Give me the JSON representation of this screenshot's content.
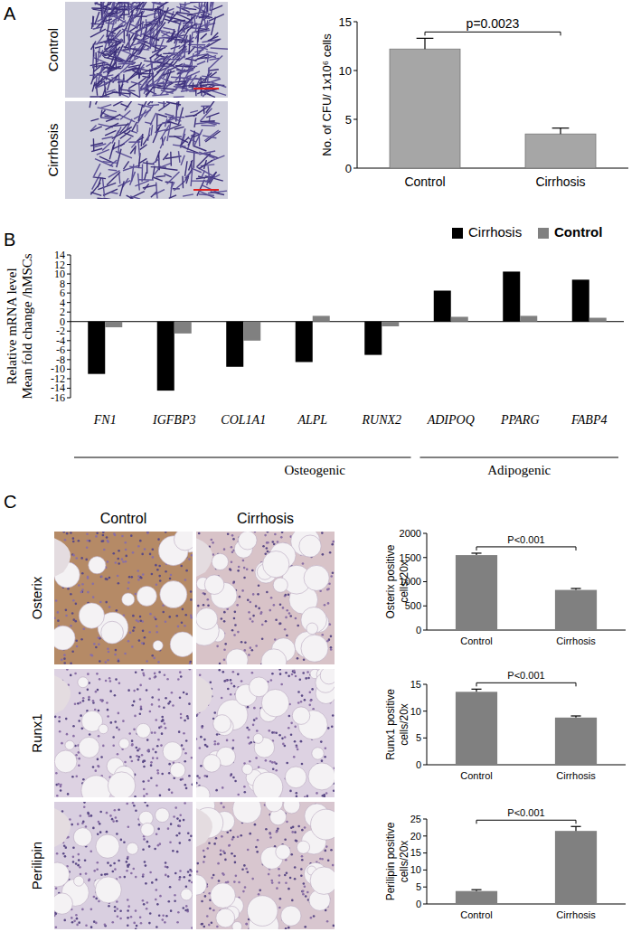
{
  "figure": {
    "panel_labels": [
      "A",
      "B",
      "C"
    ],
    "panel_a_rows": [
      "Control",
      "Cirrhosis"
    ],
    "panel_c_columns": [
      "Control",
      "Cirrhosis"
    ],
    "panel_c_rows": [
      "Osterix",
      "Runx1",
      "Perilipin"
    ]
  },
  "chart_data": [
    {
      "type": "bar",
      "y_label": [
        "No. of CFU/ 1x10⁶ cells"
      ],
      "categories": [
        "Control",
        "Cirrhosis"
      ],
      "values": [
        12.2,
        3.5
      ],
      "errors": [
        1.1,
        0.6
      ],
      "color": "#a6a6a6",
      "ylim": [
        0,
        15
      ],
      "yticks": [
        0,
        5,
        10,
        15
      ],
      "annotation": "p=0.0023"
    },
    {
      "type": "bar",
      "y_label": [
        "Relative mRNA level",
        "Mean fold change /hMSCs"
      ],
      "categories": [
        "FN1",
        "IGFBP3",
        "COL1A1",
        "ALPL",
        "RUNX2",
        "ADIPOQ",
        "PPARG",
        "FABP4"
      ],
      "series": [
        {
          "name": "Cirrhosis",
          "color": "#000000",
          "values": [
            -11,
            -14.5,
            -9.5,
            -8.5,
            -7,
            6.5,
            10.5,
            8.8
          ]
        },
        {
          "name": "Control",
          "color": "#808080",
          "values": [
            -1.2,
            -2.5,
            -4,
            1.2,
            -1,
            1,
            1.2,
            0.8
          ]
        }
      ],
      "ylim": [
        -16,
        14
      ],
      "yticks": [
        14,
        12,
        10,
        8,
        6,
        4,
        2,
        0,
        -2,
        -4,
        -6,
        -8,
        -10,
        -12,
        -14,
        -16
      ],
      "legend": "top-right",
      "category_groups": [
        {
          "label": "Osteogenic",
          "categories": [
            "FN1",
            "IGFBP3",
            "COL1A1",
            "ALPL",
            "RUNX2"
          ]
        },
        {
          "label": "Adipogenic",
          "categories": [
            "ADIPOQ",
            "PPARG",
            "FABP4"
          ]
        }
      ]
    },
    {
      "type": "bar",
      "y_label": [
        "Osterix positive",
        "cells/20x"
      ],
      "categories": [
        "Control",
        "Cirrhosis"
      ],
      "values": [
        1550,
        830
      ],
      "errors": [
        40,
        30
      ],
      "color": "#808080",
      "ylim": [
        0,
        2000
      ],
      "yticks": [
        0,
        500,
        1000,
        1500,
        2000
      ],
      "annotation": "P<0.001"
    },
    {
      "type": "bar",
      "y_label": [
        "Runx1 positive",
        "cells/20x"
      ],
      "categories": [
        "Control",
        "Cirrhosis"
      ],
      "values": [
        13.6,
        8.8
      ],
      "errors": [
        0.5,
        0.3
      ],
      "color": "#808080",
      "ylim": [
        0,
        15
      ],
      "yticks": [
        0,
        5,
        10,
        15
      ],
      "annotation": "P<0.001"
    },
    {
      "type": "bar",
      "y_label": [
        "Perilipin positive",
        "cells/20x"
      ],
      "categories": [
        "Control",
        "Cirrhosis"
      ],
      "values": [
        3.8,
        21.5
      ],
      "errors": [
        0.4,
        1.3
      ],
      "color": "#808080",
      "ylim": [
        0,
        25
      ],
      "yticks": [
        0,
        5,
        10,
        15,
        20,
        25
      ],
      "annotation": "P<0.001"
    }
  ]
}
